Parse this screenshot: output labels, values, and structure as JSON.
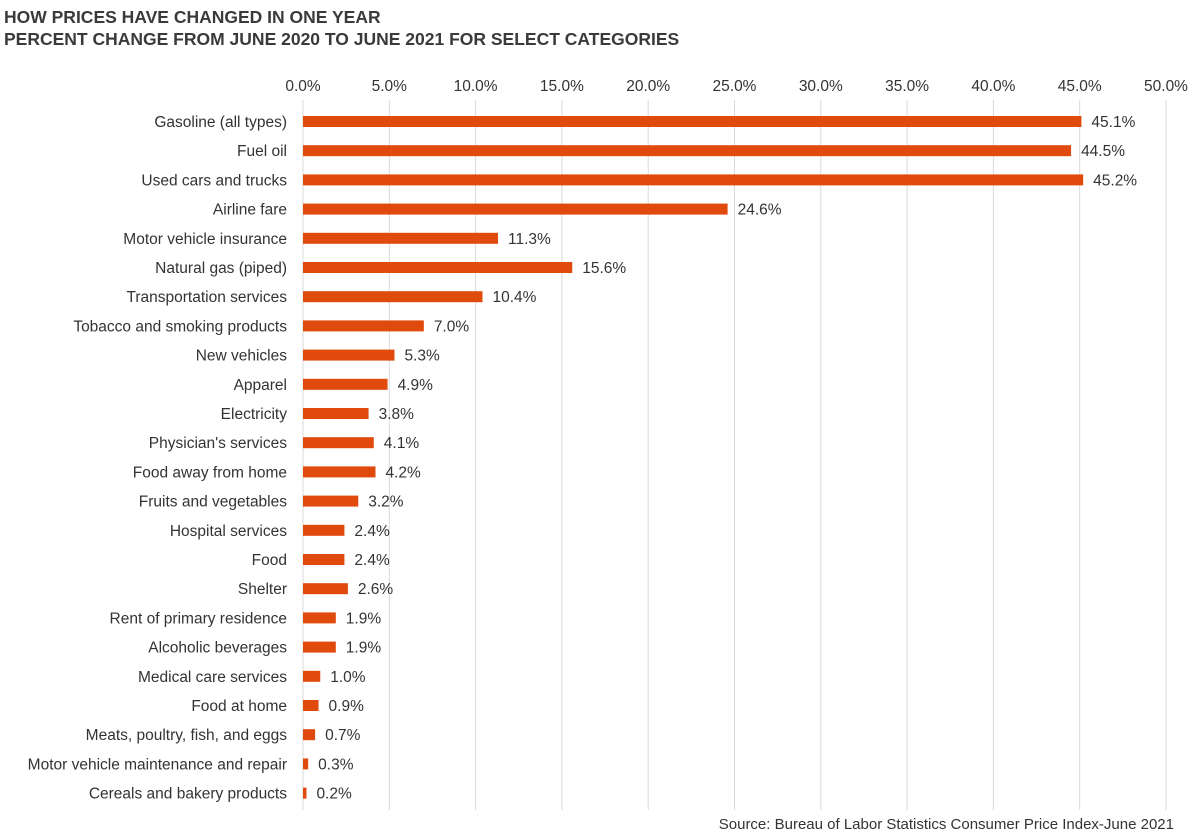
{
  "chart_data": {
    "type": "bar",
    "orientation": "horizontal",
    "title": "HOW PRICES HAVE CHANGED IN ONE YEAR",
    "subtitle": "PERCENT CHANGE FROM JUNE 2020 TO JUNE 2021 FOR SELECT CATEGORIES",
    "categories": [
      "Gasoline (all types)",
      "Fuel oil",
      "Used cars and trucks",
      "Airline fare",
      "Motor vehicle insurance",
      "Natural gas (piped)",
      "Transportation services",
      "Tobacco and smoking products",
      "New vehicles",
      "Apparel",
      "Electricity",
      "Physician's services",
      "Food away from home",
      "Fruits and vegetables",
      "Hospital services",
      "Food",
      "Shelter",
      "Rent of primary residence",
      "Alcoholic beverages",
      "Medical care services",
      "Food at home",
      "Meats, poultry, fish, and eggs",
      "Motor vehicle maintenance and repair",
      "Cereals and bakery products"
    ],
    "values": [
      45.1,
      44.5,
      45.2,
      24.6,
      11.3,
      15.6,
      10.4,
      7.0,
      5.3,
      4.9,
      3.8,
      4.1,
      4.2,
      3.2,
      2.4,
      2.4,
      2.6,
      1.9,
      1.9,
      1.0,
      0.9,
      0.7,
      0.3,
      0.2
    ],
    "value_labels": [
      "45.1%",
      "44.5%",
      "45.2%",
      "24.6%",
      "11.3%",
      "15.6%",
      "10.4%",
      "7.0%",
      "5.3%",
      "4.9%",
      "3.8%",
      "4.1%",
      "4.2%",
      "3.2%",
      "2.4%",
      "2.4%",
      "2.6%",
      "1.9%",
      "1.9%",
      "1.0%",
      "0.9%",
      "0.7%",
      "0.3%",
      "0.2%"
    ],
    "xlim": [
      0,
      50
    ],
    "xticks": [
      0,
      5,
      10,
      15,
      20,
      25,
      30,
      35,
      40,
      45,
      50
    ],
    "xtick_labels": [
      "0.0%",
      "5.0%",
      "10.0%",
      "15.0%",
      "20.0%",
      "25.0%",
      "30.0%",
      "35.0%",
      "40.0%",
      "45.0%",
      "50.0%"
    ],
    "x_axis_position": "top",
    "grid": "vertical",
    "legend": "none",
    "bar_color": "#e04a0c",
    "grid_color": "#d9d9d9",
    "source": "Source: Bureau of Labor Statistics Consumer Price Index-June 2021"
  }
}
